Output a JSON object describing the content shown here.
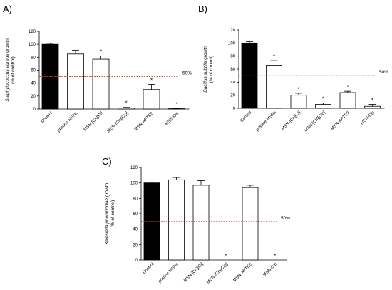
{
  "chart_data": [
    {
      "type": "bar",
      "panel_label": "A)",
      "ylabel_italic": "Staphylococcus aureus",
      "ylabel_rest": " growth",
      "ylabel_line2": "(% of control)",
      "categories": [
        "Control",
        "pristine MSNs",
        "MSN-[Ch][Cl]",
        "MSN-[Ch][Cip]",
        "MSN-APTES",
        "MSN-Cip"
      ],
      "values": [
        100,
        85,
        77,
        1.5,
        30,
        0.5
      ],
      "errors": [
        1.5,
        6,
        5,
        1,
        8,
        0.5
      ],
      "significant": [
        false,
        false,
        true,
        true,
        true,
        true
      ],
      "star_symbol": "*",
      "fills": [
        "#000000",
        "#ffffff",
        "#ffffff",
        "#ffffff",
        "#ffffff",
        "#ffffff"
      ],
      "ylim": [
        0,
        120
      ],
      "yticks": [
        0,
        20,
        40,
        60,
        80,
        100,
        120
      ],
      "reference_line": {
        "value": 50,
        "label": "50%",
        "color": "#c0392b"
      }
    },
    {
      "type": "bar",
      "panel_label": "B)",
      "ylabel_italic": "Bacillus subtilis",
      "ylabel_rest": " growth",
      "ylabel_line2": "(% of control)",
      "categories": [
        "Control",
        "pristine MSNs",
        "MSN-[Ch][Cl]",
        "MSN-[Ch][Cip]",
        "MSN-APTES",
        "MSN-Cip"
      ],
      "values": [
        100,
        66,
        20,
        6,
        24,
        3
      ],
      "errors": [
        2,
        7,
        3,
        2,
        2,
        3
      ],
      "significant": [
        false,
        true,
        true,
        true,
        true,
        true
      ],
      "star_symbol": "*",
      "fills": [
        "#000000",
        "#ffffff",
        "#ffffff",
        "#ffffff",
        "#ffffff",
        "#ffffff"
      ],
      "ylim": [
        0,
        120
      ],
      "yticks": [
        0,
        20,
        40,
        60,
        80,
        100,
        120
      ],
      "reference_line": {
        "value": 50,
        "label": "50%",
        "color": "#c0392b"
      }
    },
    {
      "type": "bar",
      "panel_label": "C)",
      "ylabel_italic": "Klebsiella pneumoniae",
      "ylabel_rest": " growth",
      "ylabel_line2": "(% of control)",
      "categories": [
        "Control",
        "pristine MSNs",
        "MSN-[Ch][Cl]",
        "MSN-[Ch][Cip]",
        "MSN-APTES",
        "MSN-Cip"
      ],
      "values": [
        100,
        104,
        97,
        0,
        94,
        0
      ],
      "errors": [
        1,
        3,
        6,
        0,
        3,
        0
      ],
      "significant": [
        false,
        false,
        false,
        true,
        false,
        true
      ],
      "star_symbol": "*",
      "fills": [
        "#000000",
        "#ffffff",
        "#ffffff",
        "#ffffff",
        "#ffffff",
        "#ffffff"
      ],
      "ylim": [
        0,
        120
      ],
      "yticks": [
        0,
        20,
        40,
        60,
        80,
        100,
        120
      ],
      "reference_line": {
        "value": 50,
        "label": "50%",
        "color": "#c0392b"
      }
    }
  ]
}
